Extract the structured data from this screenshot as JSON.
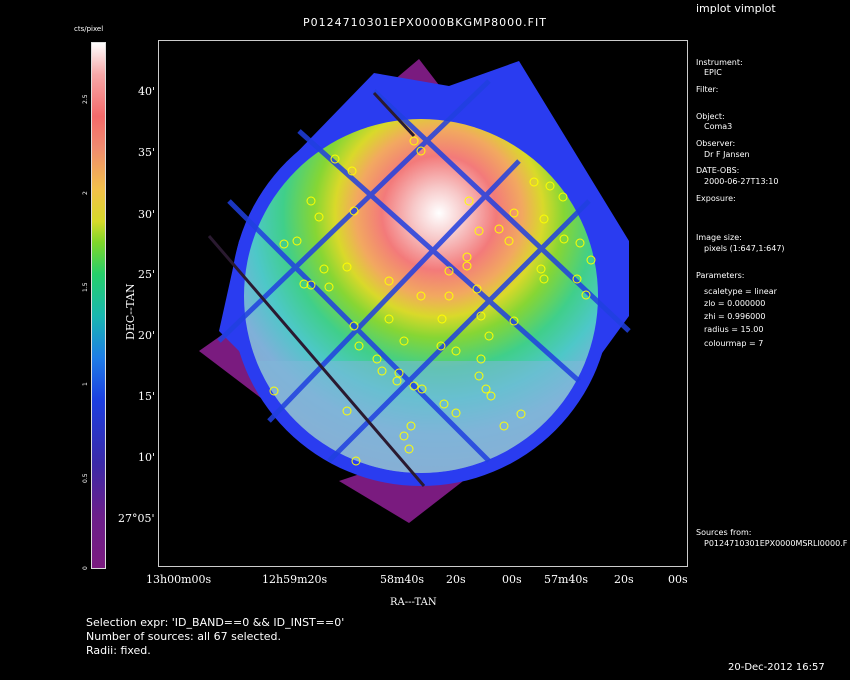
{
  "title": "P0124710301EPX0000BKGMP8000.FIT",
  "app_title": "implot vimplot",
  "colorbar": {
    "units": "cts/pixel",
    "ticks": [
      "0",
      "0.5",
      "1",
      "1.5",
      "2",
      "2.5"
    ]
  },
  "axes": {
    "xlabel": "RA---TAN",
    "ylabel": "DEC--TAN",
    "yticks": [
      "40'",
      "35'",
      "30'",
      "25'",
      "20'",
      "15'",
      "10'",
      "27°05'"
    ],
    "xticks": [
      "13h00m00s",
      "12h59m20s",
      "58m40s",
      "20s",
      "00s",
      "57m40s",
      "20s",
      "00s"
    ]
  },
  "info": {
    "instrument_label": "Instrument:",
    "instrument": "EPIC",
    "filter_label": "Filter:",
    "object_label": "Object:",
    "object": "Coma3",
    "observer_label": "Observer:",
    "observer": "Dr F Jansen",
    "date_label": "DATE-OBS:",
    "date": "2000-06-27T13:10",
    "exposure_label": "Exposure:",
    "image_size_label": "Image size:",
    "image_size": "pixels (1:647,1:647)",
    "parameters_label": "Parameters:",
    "scaletype": "scaletype = linear",
    "zlo": "zlo = 0.000000",
    "zhi": "zhi = 0.996000",
    "radius": "radius = 15.00",
    "colourmap": "colourmap = 7",
    "sources_label": "Sources from:",
    "sources_file": "P0124710301EPX0000MSRLI0000.F"
  },
  "footer": {
    "selection": "Selection expr: 'ID_BAND==0 && ID_INST==0'",
    "number": "Number of sources: all 67 selected.",
    "radii": "Radii: fixed."
  },
  "timestamp": "20-Dec-2012 16:57",
  "colors": {
    "background": "#000000",
    "source_marker": "#ffff00",
    "outer_frame": "#7a1b7f",
    "ring": "#2a3cf0"
  }
}
